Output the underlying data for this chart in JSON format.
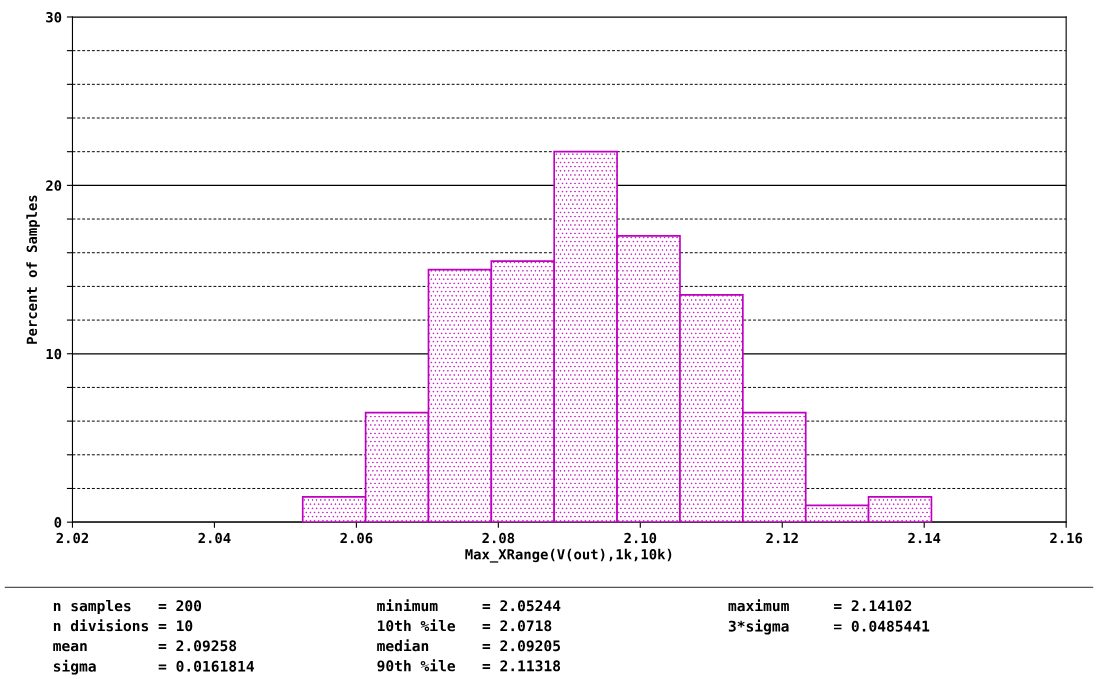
{
  "chart_data": {
    "type": "histogram",
    "xlabel": "Max_XRange(V(out),1k,10k)",
    "ylabel": "Percent of Samples",
    "bins": [
      2.05244,
      2.0613,
      2.07016,
      2.07901,
      2.08787,
      2.09673,
      2.10559,
      2.11445,
      2.12331,
      2.13216,
      2.14102
    ],
    "values": [
      1.5,
      6.5,
      15,
      15.5,
      22,
      17,
      13.5,
      6.5,
      1,
      1.5
    ],
    "color": "#c000c0",
    "xlim": [
      2.02,
      2.16
    ],
    "xticks": [
      2.02,
      2.04,
      2.06,
      2.08,
      {
        "value": 2.1,
        "label": "2.10"
      },
      2.12,
      2.14,
      2.16
    ],
    "ylim": [
      0,
      30
    ],
    "yticks": [
      0,
      {
        "value": 2,
        "label": null
      },
      {
        "value": 4,
        "label": null
      },
      {
        "value": 6,
        "label": null
      },
      {
        "value": 8,
        "label": null
      },
      10,
      {
        "value": 12,
        "label": null
      },
      {
        "value": 14,
        "label": null
      },
      {
        "value": 16,
        "label": null
      },
      {
        "value": 18,
        "label": null
      },
      20,
      {
        "value": 22,
        "label": null
      },
      {
        "value": 24,
        "label": null
      },
      {
        "value": 26,
        "label": null
      },
      {
        "value": 28,
        "label": null
      },
      30
    ],
    "grid": "y",
    "annotations": [
      "n samples   = 200",
      "n divisions = 10",
      "mean        = 2.09258",
      "sigma       = 0.0161814",
      "minimum     = 2.05244",
      "10th %ile   = 2.0718",
      "median      = 2.09205",
      "90th %ile   = 2.11318",
      "maximum     = 2.14102",
      "3*sigma     = 0.0485441"
    ]
  }
}
